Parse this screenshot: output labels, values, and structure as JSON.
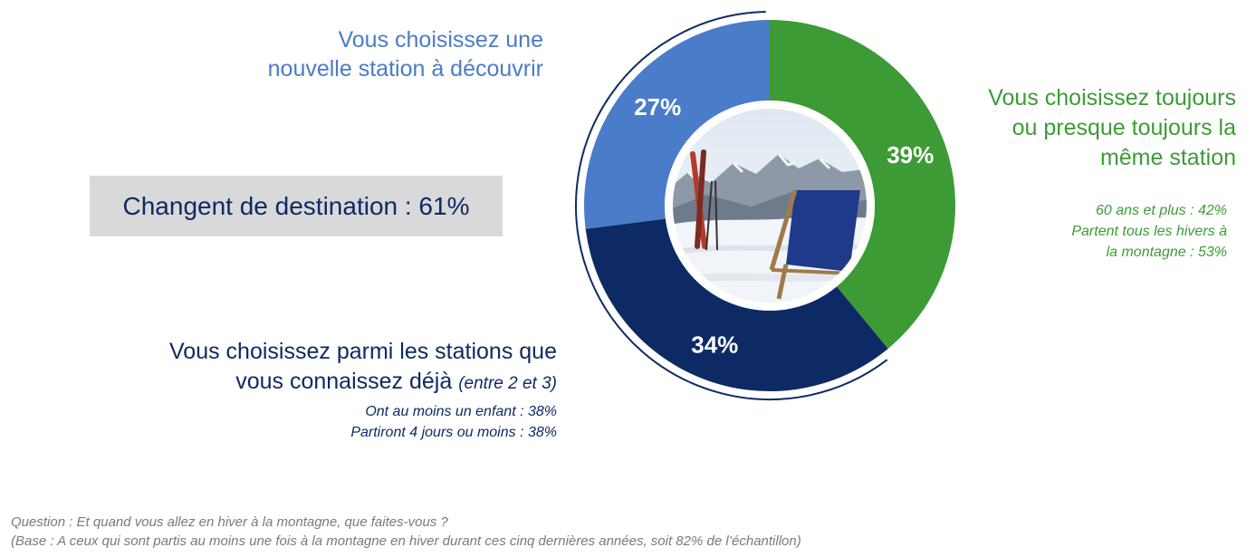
{
  "labels": {
    "blue_line1": "Vous choisissez une",
    "blue_line2": "nouvelle station à découvrir",
    "green_line1": "Vous choisissez toujours",
    "green_line2": "ou presque toujours la",
    "green_line3": "même station",
    "green_sub1": "60 ans et plus : 42%",
    "green_sub2": "Partent tous les hivers à",
    "green_sub3": "la montagne : 53%",
    "navy_line1": "Vous choisissez parmi les stations que",
    "navy_line2": "vous connaissez déjà",
    "navy_line2_italic": "(entre 2 et 3)",
    "navy_sub1": "Ont au moins un enfant : 38%",
    "navy_sub2": "Partiront 4 jours ou moins : 38%"
  },
  "summary": "Changent de destination : 61%",
  "footer": {
    "question": "Question : Et quand vous allez en hiver à la montagne, que faites-vous ?",
    "base": "(Base : A ceux qui sont partis au moins une fois à la montagne en hiver durant ces cinq dernières années, soit 82% de l’échantillon)"
  },
  "chart_data": {
    "type": "pie",
    "categories": [
      "Vous choisissez toujours ou presque toujours la même station",
      "Vous choisissez parmi les stations que vous connaissez déjà",
      "Vous choisissez une nouvelle station à découvrir"
    ],
    "values": [
      39,
      34,
      27
    ],
    "value_labels": [
      "39%",
      "34%",
      "27%"
    ],
    "colors": [
      "#3d9b35",
      "#0e2a64",
      "#4a7cc9"
    ],
    "start": "12 o'clock",
    "direction": "clockwise",
    "donut": true,
    "center_image": "mountain-deckchair-skis-photo"
  }
}
